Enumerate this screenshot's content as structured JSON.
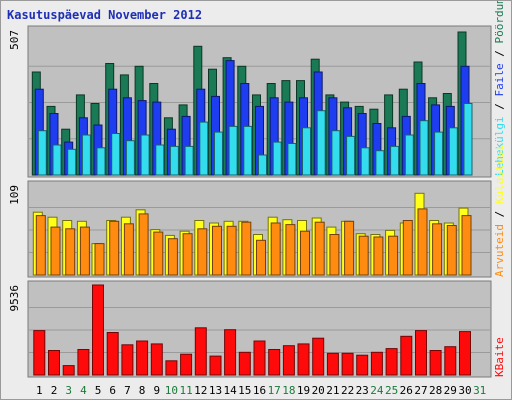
{
  "chart_data": {
    "type": "bar",
    "title": "Kasutuspäevad November 2012",
    "categories": [
      "1",
      "2",
      "3",
      "4",
      "5",
      "6",
      "7",
      "8",
      "9",
      "10",
      "11",
      "12",
      "13",
      "14",
      "15",
      "16",
      "17",
      "18",
      "19",
      "20",
      "21",
      "22",
      "23",
      "24",
      "25",
      "26",
      "27",
      "28",
      "29",
      "30",
      "31"
    ],
    "weekend_days": [
      "3",
      "4",
      "10",
      "11",
      "17",
      "18",
      "24",
      "25",
      "31"
    ],
    "panels": [
      {
        "id": "visits",
        "ymax_label": "507",
        "ymax": 507,
        "series": [
          {
            "name": "Pöördumisi",
            "color": "#1a7a55",
            "values": [
              360,
              240,
              160,
              280,
              250,
              390,
              350,
              380,
              320,
              200,
              245,
              450,
              370,
              410,
              380,
              280,
              320,
              330,
              330,
              405,
              280,
              255,
              240,
              230,
              280,
              300,
              395,
              270,
              285,
              500
            ]
          },
          {
            "name": "Faile",
            "color": "#1e3cf0",
            "values": [
              300,
              215,
              115,
              200,
              175,
              300,
              270,
              260,
              255,
              160,
              205,
              300,
              275,
              400,
              320,
              240,
              270,
              255,
              270,
              360,
              270,
              235,
              215,
              180,
              165,
              205,
              320,
              245,
              240,
              380
            ]
          },
          {
            "name": "Lehekülgi",
            "color": "#33ddee",
            "values": [
              155,
              105,
              90,
              140,
              95,
              145,
              120,
              140,
              105,
              100,
              100,
              185,
              150,
              170,
              170,
              70,
              115,
              110,
              165,
              225,
              155,
              135,
              95,
              85,
              100,
              140,
              190,
              150,
              165,
              250
            ]
          }
        ]
      },
      {
        "id": "hosts",
        "ymax_label": "109",
        "ymax": 109,
        "series": [
          {
            "name": "Külastusi",
            "color": "#ffff1a",
            "values": [
              76,
              70,
              66,
              65,
              38,
              66,
              70,
              79,
              55,
              48,
              53,
              66,
              63,
              65,
              65,
              49,
              70,
              67,
              66,
              69,
              58,
              65,
              50,
              49,
              54,
              63,
              99,
              66,
              63,
              81
            ]
          },
          {
            "name": "Arvuteid",
            "color": "#ff8c10",
            "values": [
              72,
              58,
              56,
              58,
              38,
              65,
              62,
              74,
              52,
              44,
              50,
              56,
              59,
              59,
              64,
              42,
              63,
              61,
              53,
              64,
              49,
              65,
              47,
              46,
              47,
              66,
              80,
              62,
              60,
              72
            ]
          }
        ]
      },
      {
        "id": "bytes",
        "ymax_label": "9536",
        "ymax": 9536,
        "series": [
          {
            "name": "KBaite",
            "color": "#ff0a0a",
            "values": [
              4700,
              2600,
              1000,
              2700,
              9536,
              4500,
              3200,
              3600,
              3300,
              1500,
              2200,
              5000,
              2000,
              4800,
              2400,
              3600,
              2700,
              3100,
              3300,
              3900,
              2300,
              2300,
              2100,
              2400,
              2800,
              4100,
              4700,
              2600,
              3000,
              4600
            ]
          }
        ]
      }
    ],
    "right_label_colors": [
      "#1a7a55",
      "#1e3cf0",
      "#33ddee",
      "#ffff1a",
      "#ff8c10",
      "#ff0a0a"
    ]
  },
  "colors": {
    "title": "#1e2fb6",
    "panel_bg": "#c0c0c0",
    "weekday_tick": "#000000",
    "weekend_tick": "#1a7a3a"
  }
}
